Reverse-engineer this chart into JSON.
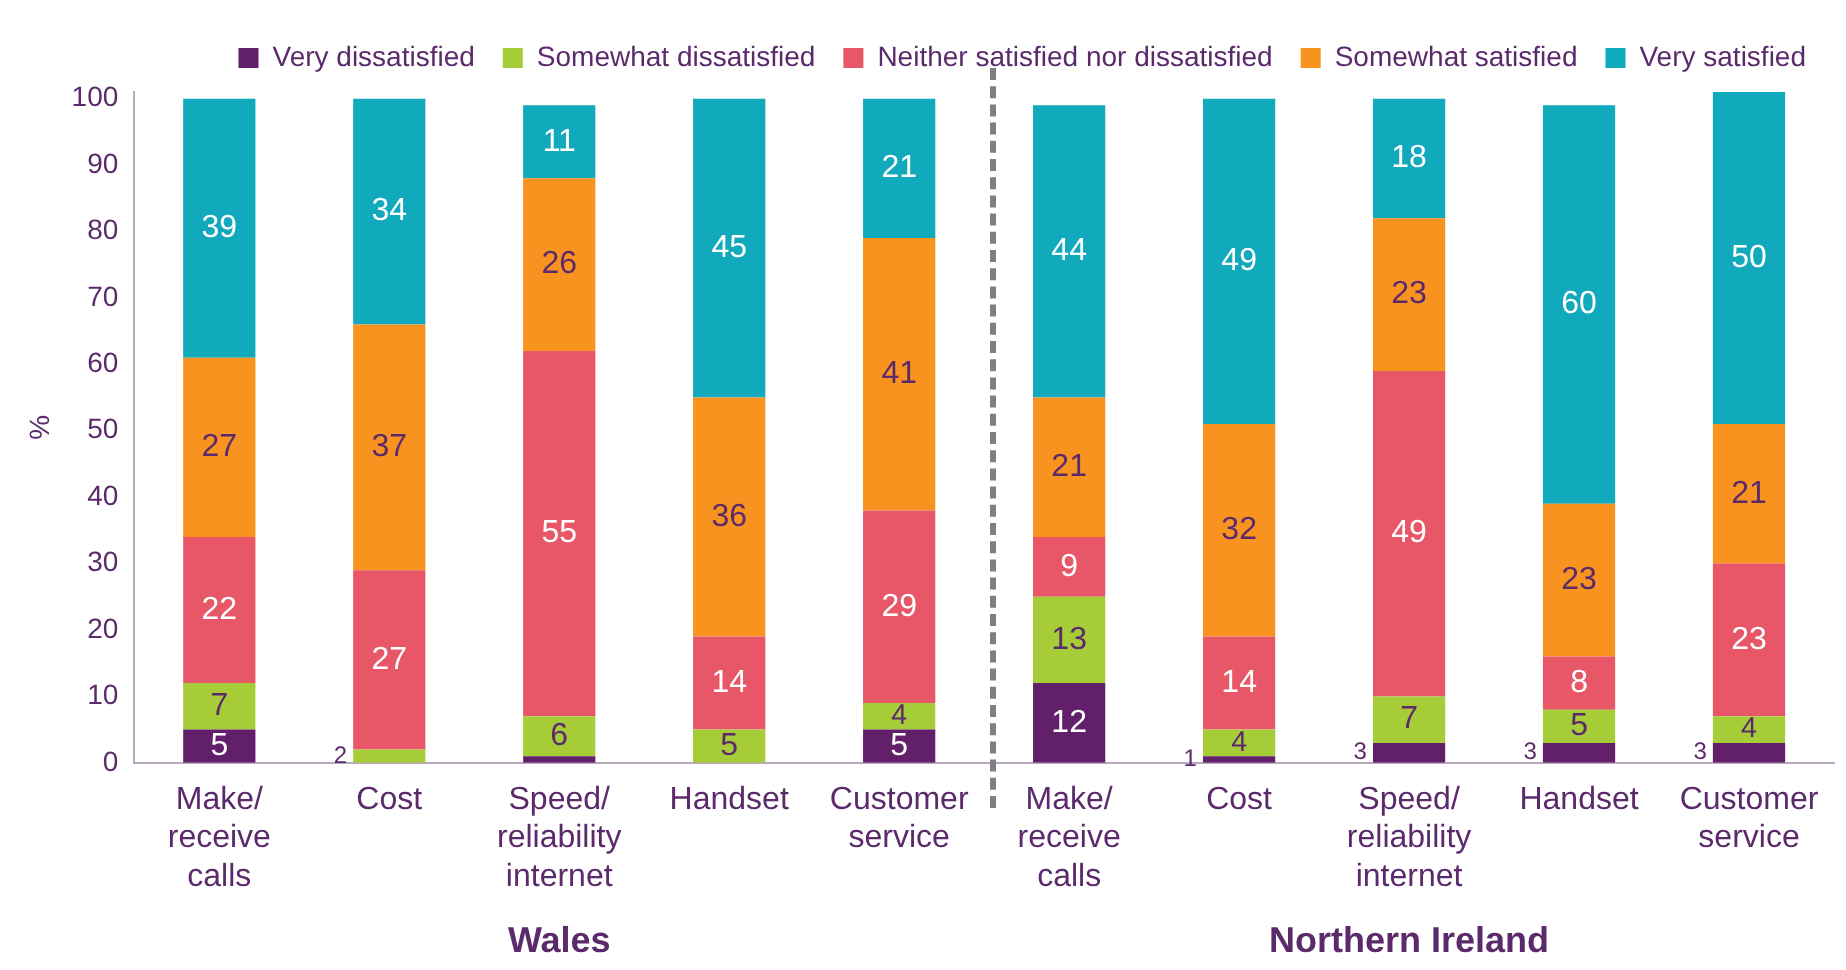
{
  "chart_data": {
    "type": "bar",
    "stacked": true,
    "ylabel": "%",
    "categories": [
      "Make/ receive calls",
      "Cost",
      "Speed/ reliability internet",
      "Handset",
      "Customer service",
      "Make/ receive calls",
      "Cost",
      "Speed/ reliability internet",
      "Handset",
      "Customer service"
    ],
    "series": [
      {
        "name": "Very dissatisfied",
        "color": "#62206a",
        "values": [
          5,
          0,
          1,
          0,
          5,
          12,
          1,
          3,
          3,
          3
        ],
        "value_labels": [
          "5",
          null,
          null,
          null,
          "5",
          "12",
          "1",
          "3",
          "3",
          "3"
        ]
      },
      {
        "name": "Somewhat dissatisfied",
        "color": "#a6cd38",
        "values": [
          7,
          2,
          6,
          5,
          4,
          13,
          4,
          7,
          5,
          4
        ],
        "value_labels": [
          "7",
          "2",
          "6",
          "5",
          "4",
          "13",
          "4",
          "7",
          "5",
          "4"
        ]
      },
      {
        "name": "Neither satisfied nor dissatisfied",
        "color": "#e75768",
        "values": [
          22,
          27,
          55,
          14,
          29,
          9,
          14,
          49,
          8,
          23
        ],
        "value_labels": [
          "22",
          "27",
          "55",
          "14",
          "29",
          "9",
          "14",
          "49",
          "8",
          "23"
        ]
      },
      {
        "name": "Somewhat satisfied",
        "color": "#f7931e",
        "values": [
          27,
          37,
          26,
          36,
          41,
          21,
          32,
          23,
          23,
          21
        ],
        "value_labels": [
          "27",
          "37",
          "26",
          "36",
          "41",
          "21",
          "32",
          "23",
          "23",
          "21"
        ]
      },
      {
        "name": "Very satisfied",
        "color": "#11a9bc",
        "values": [
          39,
          34,
          11,
          45,
          21,
          44,
          49,
          18,
          60,
          50
        ],
        "value_labels": [
          "39",
          "34",
          "11",
          "45",
          "21",
          "44",
          "49",
          "18",
          "60",
          "50"
        ]
      }
    ],
    "ylim": [
      0,
      101
    ],
    "yticks": [
      0,
      10,
      20,
      30,
      40,
      50,
      60,
      70,
      80,
      90,
      100
    ],
    "annotations": [
      "Wales",
      "Northern Ireland"
    ],
    "legend": "top",
    "grid": false
  }
}
